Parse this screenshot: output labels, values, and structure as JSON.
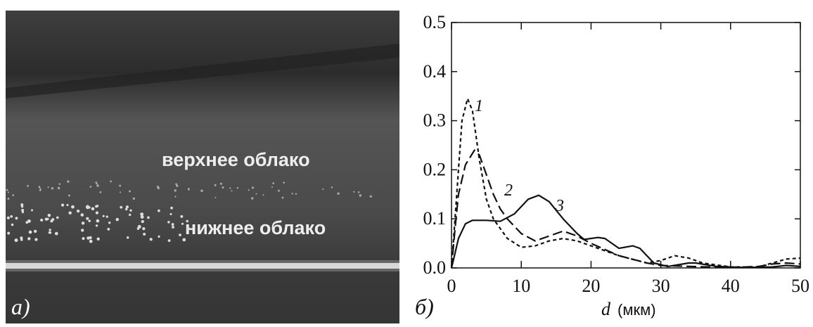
{
  "photo": {
    "labels": [
      "верхнее облако",
      "нижнее облако"
    ],
    "panel_label": "а)"
  },
  "chart_data": {
    "type": "line",
    "panel_label": "б)",
    "x_label_var": "d",
    "x_label_unit": "(мкм)",
    "xlim": [
      0,
      50
    ],
    "xticks": [
      0,
      10,
      20,
      30,
      40,
      50
    ],
    "ylim": [
      0,
      0.5
    ],
    "yticks": [
      {
        "value": 0,
        "label": "0.0"
      },
      0.1,
      0.2,
      0.3,
      0.4,
      0.5
    ],
    "series": [
      {
        "name": "1",
        "color": "#111111",
        "line_style": "short-dash",
        "x": [
          0,
          0.5,
          1,
          1.5,
          2.3,
          3,
          4,
          5,
          6,
          8,
          10,
          12,
          14,
          16,
          18,
          20,
          24,
          28,
          30,
          32,
          34,
          36,
          40,
          44,
          46,
          48,
          50
        ],
        "values": [
          0,
          0.1,
          0.2,
          0.3,
          0.345,
          0.32,
          0.22,
          0.14,
          0.1,
          0.06,
          0.042,
          0.045,
          0.055,
          0.06,
          0.055,
          0.045,
          0.025,
          0.01,
          0.015,
          0.025,
          0.02,
          0.01,
          0.002,
          0.002,
          0.01,
          0.018,
          0.02
        ]
      },
      {
        "name": "2",
        "color": "#111111",
        "line_style": "long-dash",
        "x": [
          0,
          0.5,
          1,
          2,
          3.3,
          4,
          5,
          6,
          7,
          8,
          10,
          12,
          14,
          16,
          18,
          20,
          24,
          28,
          30,
          34,
          40,
          44,
          46,
          48,
          50
        ],
        "values": [
          0,
          0.08,
          0.15,
          0.21,
          0.24,
          0.23,
          0.19,
          0.15,
          0.12,
          0.1,
          0.07,
          0.055,
          0.065,
          0.075,
          0.065,
          0.05,
          0.025,
          0.01,
          0.005,
          0.003,
          0.001,
          0.003,
          0.008,
          0.01,
          0.008
        ]
      },
      {
        "name": "3",
        "color": "#111111",
        "line_style": "solid",
        "x": [
          0,
          0.5,
          1,
          2,
          3,
          5,
          7,
          9,
          11,
          12.5,
          14,
          16,
          18,
          19,
          21,
          22,
          24,
          26,
          27,
          29,
          31,
          34,
          35,
          38,
          42,
          46,
          48,
          50
        ],
        "values": [
          0,
          0.03,
          0.06,
          0.09,
          0.097,
          0.097,
          0.095,
          0.11,
          0.14,
          0.148,
          0.135,
          0.1,
          0.07,
          0.058,
          0.062,
          0.06,
          0.04,
          0.045,
          0.04,
          0.01,
          0.003,
          0.01,
          0.01,
          0.003,
          0.001,
          0.002,
          0.005,
          0.003
        ]
      }
    ]
  }
}
